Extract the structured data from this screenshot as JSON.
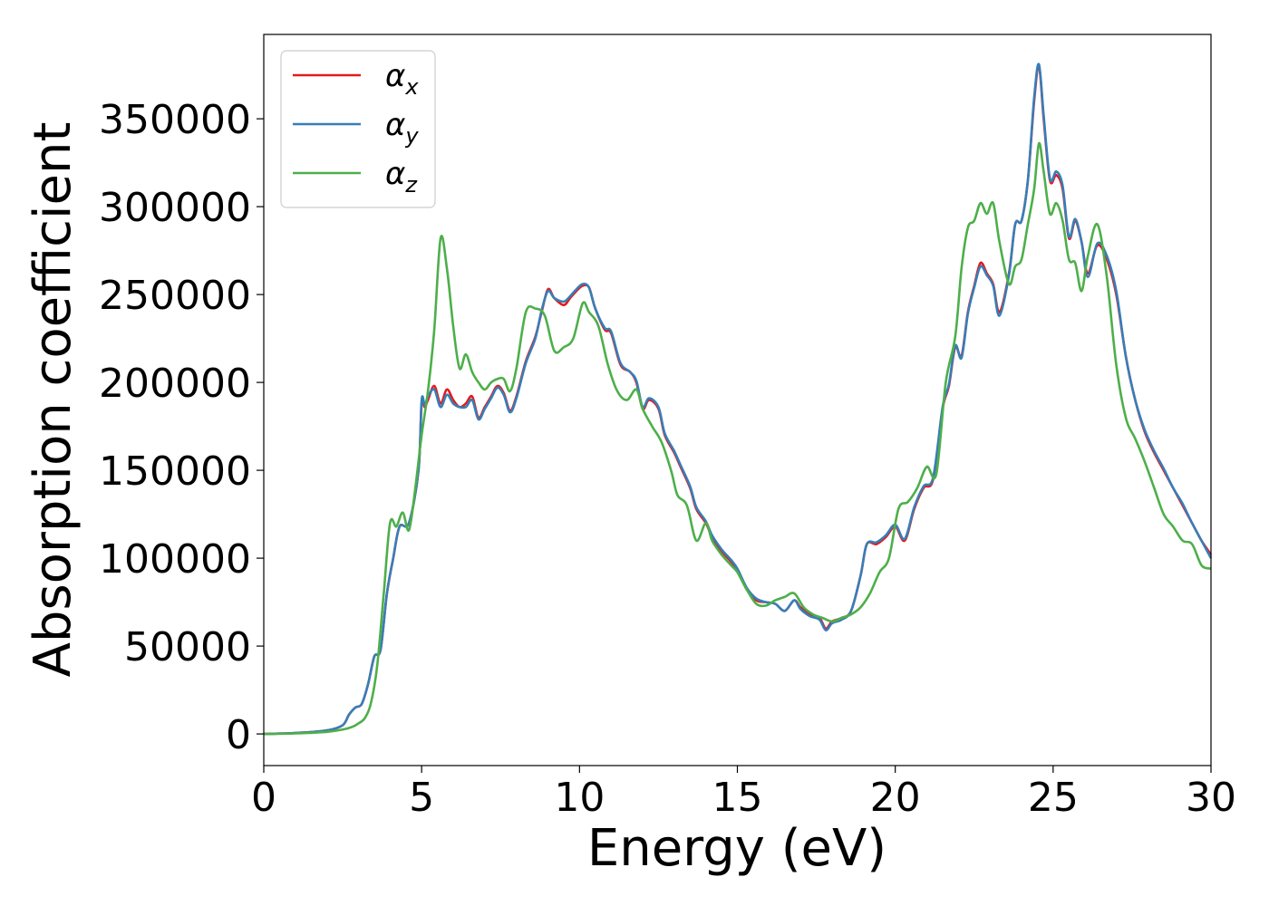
{
  "chart_data": {
    "type": "line",
    "xlabel": "Energy (eV)",
    "ylabel": "Absorption coefficient",
    "xlim": [
      0,
      30
    ],
    "ylim": [
      -18000,
      398000
    ],
    "xticks": [
      "0",
      "5",
      "10",
      "15",
      "20",
      "25",
      "30"
    ],
    "yticks": [
      "0",
      "50000",
      "100000",
      "150000",
      "200000",
      "250000",
      "300000",
      "350000"
    ],
    "grid": false,
    "legend_position": "top-left",
    "series": [
      {
        "name": "α_x",
        "label_main": "α",
        "label_sub": "x",
        "color": "#e41a1c",
        "x": [
          0,
          1,
          2,
          2.5,
          2.7,
          2.9,
          3.1,
          3.3,
          3.5,
          3.7,
          3.9,
          4.1,
          4.3,
          4.6,
          4.9,
          5.0,
          5.1,
          5.2,
          5.4,
          5.6,
          5.8,
          6.0,
          6.2,
          6.4,
          6.6,
          6.8,
          7.0,
          7.2,
          7.4,
          7.6,
          7.8,
          8.0,
          8.3,
          8.6,
          8.8,
          9.0,
          9.2,
          9.5,
          9.7,
          9.9,
          10.1,
          10.3,
          10.5,
          10.8,
          11.0,
          11.3,
          11.6,
          11.8,
          12.0,
          12.2,
          12.5,
          12.7,
          13.0,
          13.2,
          13.5,
          13.7,
          14.0,
          14.2,
          14.5,
          14.8,
          15.0,
          15.3,
          15.6,
          15.9,
          16.2,
          16.5,
          16.8,
          17.0,
          17.3,
          17.6,
          17.8,
          18.0,
          18.3,
          18.6,
          18.9,
          19.1,
          19.4,
          19.7,
          20.0,
          20.3,
          20.6,
          20.9,
          21.2,
          21.5,
          21.7,
          21.9,
          22.1,
          22.3,
          22.5,
          22.7,
          22.9,
          23.1,
          23.3,
          23.6,
          23.8,
          24.0,
          24.2,
          24.4,
          24.55,
          24.7,
          24.9,
          25.1,
          25.3,
          25.5,
          25.7,
          25.9,
          26.1,
          26.4,
          26.7,
          27.0,
          27.3,
          27.6,
          27.9,
          28.2,
          28.5,
          28.8,
          29.1,
          29.4,
          29.7,
          30
        ],
        "y": [
          0,
          500,
          2000,
          5000,
          11000,
          15000,
          17000,
          28000,
          44000,
          48000,
          80000,
          100000,
          118000,
          120000,
          150000,
          188000,
          186000,
          190000,
          198000,
          188000,
          196000,
          190000,
          186000,
          188000,
          192000,
          180000,
          186000,
          192000,
          198000,
          194000,
          184000,
          192000,
          212000,
          226000,
          240000,
          253000,
          248000,
          244000,
          248000,
          252000,
          255000,
          254000,
          242000,
          230000,
          228000,
          210000,
          206000,
          200000,
          185000,
          190000,
          185000,
          170000,
          160000,
          152000,
          140000,
          128000,
          120000,
          112000,
          104000,
          98000,
          93000,
          82000,
          76000,
          75000,
          74000,
          70000,
          76000,
          72000,
          68000,
          66000,
          60000,
          64000,
          66000,
          70000,
          90000,
          108000,
          108000,
          112000,
          118000,
          110000,
          128000,
          140000,
          145000,
          185000,
          198000,
          220000,
          215000,
          240000,
          255000,
          268000,
          262000,
          256000,
          240000,
          262000,
          290000,
          292000,
          315000,
          360000,
          380000,
          350000,
          315000,
          318000,
          310000,
          282000,
          292000,
          280000,
          262000,
          278000,
          270000,
          250000,
          215000,
          190000,
          172000,
          160000,
          150000,
          140000,
          130000,
          120000,
          110000,
          102000
        ]
      },
      {
        "name": "α_y",
        "label_main": "α",
        "label_sub": "y",
        "color": "#377eb8",
        "x": [
          0,
          1,
          2,
          2.5,
          2.7,
          2.9,
          3.1,
          3.3,
          3.5,
          3.7,
          3.9,
          4.1,
          4.3,
          4.6,
          4.9,
          5.0,
          5.1,
          5.2,
          5.4,
          5.6,
          5.8,
          6.0,
          6.2,
          6.4,
          6.6,
          6.8,
          7.0,
          7.2,
          7.4,
          7.6,
          7.8,
          8.0,
          8.3,
          8.6,
          8.8,
          9.0,
          9.2,
          9.5,
          9.7,
          9.9,
          10.1,
          10.3,
          10.5,
          10.8,
          11.0,
          11.3,
          11.6,
          11.8,
          12.0,
          12.2,
          12.5,
          12.7,
          13.0,
          13.2,
          13.5,
          13.7,
          14.0,
          14.2,
          14.5,
          14.8,
          15.0,
          15.3,
          15.6,
          15.9,
          16.2,
          16.5,
          16.8,
          17.0,
          17.3,
          17.6,
          17.8,
          18.0,
          18.3,
          18.6,
          18.9,
          19.1,
          19.4,
          19.7,
          20.0,
          20.3,
          20.6,
          20.9,
          21.2,
          21.5,
          21.7,
          21.9,
          22.1,
          22.3,
          22.5,
          22.7,
          22.9,
          23.1,
          23.3,
          23.6,
          23.8,
          24.0,
          24.2,
          24.4,
          24.55,
          24.7,
          24.9,
          25.1,
          25.3,
          25.5,
          25.7,
          25.9,
          26.1,
          26.4,
          26.7,
          27.0,
          27.3,
          27.6,
          27.9,
          28.2,
          28.5,
          28.8,
          29.1,
          29.4,
          29.7,
          30
        ],
        "y": [
          0,
          500,
          2000,
          5000,
          11000,
          15000,
          17000,
          28000,
          44000,
          48000,
          80000,
          100000,
          118000,
          120000,
          150000,
          190000,
          187000,
          192000,
          196000,
          186000,
          193000,
          188000,
          186000,
          186000,
          190000,
          179000,
          185000,
          191000,
          197000,
          193000,
          183000,
          191000,
          211000,
          225000,
          241000,
          252000,
          248000,
          246000,
          249000,
          253000,
          256000,
          254000,
          242000,
          231000,
          229000,
          211000,
          206000,
          201000,
          186000,
          191000,
          186000,
          171000,
          161000,
          153000,
          141000,
          129000,
          121000,
          113000,
          105000,
          99000,
          94000,
          83000,
          77000,
          75000,
          74000,
          70000,
          76000,
          71000,
          67000,
          65000,
          59000,
          63000,
          65000,
          70000,
          90000,
          108000,
          109000,
          113000,
          119000,
          111000,
          129000,
          141000,
          146000,
          186000,
          199000,
          221000,
          214000,
          239000,
          254000,
          266000,
          261000,
          255000,
          238000,
          261000,
          290000,
          292000,
          315000,
          362000,
          381000,
          352000,
          316000,
          320000,
          312000,
          283000,
          293000,
          280000,
          260000,
          279000,
          272000,
          252000,
          215000,
          190000,
          173000,
          161000,
          151000,
          140000,
          131000,
          120000,
          110000,
          100000
        ]
      },
      {
        "name": "α_z",
        "label_main": "α",
        "label_sub": "z",
        "color": "#4daf4a",
        "x": [
          0,
          1,
          2,
          2.5,
          2.8,
          3.0,
          3.2,
          3.4,
          3.6,
          3.8,
          4.0,
          4.2,
          4.4,
          4.6,
          4.8,
          5.0,
          5.2,
          5.4,
          5.6,
          5.8,
          6.0,
          6.2,
          6.4,
          6.6,
          6.8,
          7.0,
          7.2,
          7.4,
          7.6,
          7.8,
          8.0,
          8.3,
          8.6,
          8.9,
          9.2,
          9.5,
          9.8,
          10.1,
          10.3,
          10.6,
          10.9,
          11.2,
          11.5,
          11.8,
          12.0,
          12.3,
          12.6,
          12.9,
          13.1,
          13.4,
          13.7,
          14.0,
          14.2,
          14.5,
          14.8,
          15.0,
          15.3,
          15.6,
          15.9,
          16.2,
          16.5,
          16.8,
          17.1,
          17.4,
          17.7,
          18.0,
          18.3,
          18.6,
          18.9,
          19.2,
          19.5,
          19.8,
          20.1,
          20.4,
          20.7,
          21.0,
          21.3,
          21.6,
          21.9,
          22.1,
          22.3,
          22.5,
          22.7,
          22.9,
          23.1,
          23.3,
          23.6,
          23.8,
          24.0,
          24.2,
          24.4,
          24.55,
          24.7,
          24.9,
          25.1,
          25.3,
          25.5,
          25.7,
          25.9,
          26.1,
          26.4,
          26.7,
          27.0,
          27.3,
          27.6,
          27.9,
          28.2,
          28.5,
          28.8,
          29.1,
          29.4,
          29.7,
          30
        ],
        "y": [
          0,
          300,
          1200,
          2500,
          4000,
          6000,
          9000,
          18000,
          40000,
          80000,
          120000,
          118000,
          126000,
          116000,
          140000,
          170000,
          195000,
          230000,
          282000,
          265000,
          232000,
          208000,
          216000,
          206000,
          200000,
          196000,
          200000,
          202000,
          202000,
          195000,
          208000,
          240000,
          242000,
          238000,
          218000,
          220000,
          225000,
          245000,
          240000,
          232000,
          210000,
          195000,
          190000,
          196000,
          185000,
          175000,
          166000,
          150000,
          136000,
          130000,
          110000,
          120000,
          110000,
          102000,
          96000,
          92000,
          82000,
          74000,
          73000,
          76000,
          78000,
          80000,
          72000,
          68000,
          66000,
          64000,
          66000,
          68000,
          72000,
          80000,
          92000,
          100000,
          128000,
          132000,
          140000,
          152000,
          148000,
          200000,
          226000,
          265000,
          288000,
          292000,
          302000,
          296000,
          302000,
          280000,
          256000,
          266000,
          270000,
          290000,
          310000,
          336000,
          320000,
          296000,
          302000,
          292000,
          270000,
          268000,
          252000,
          272000,
          290000,
          260000,
          210000,
          180000,
          168000,
          155000,
          140000,
          125000,
          118000,
          110000,
          108000,
          96000,
          94000
        ]
      }
    ]
  }
}
